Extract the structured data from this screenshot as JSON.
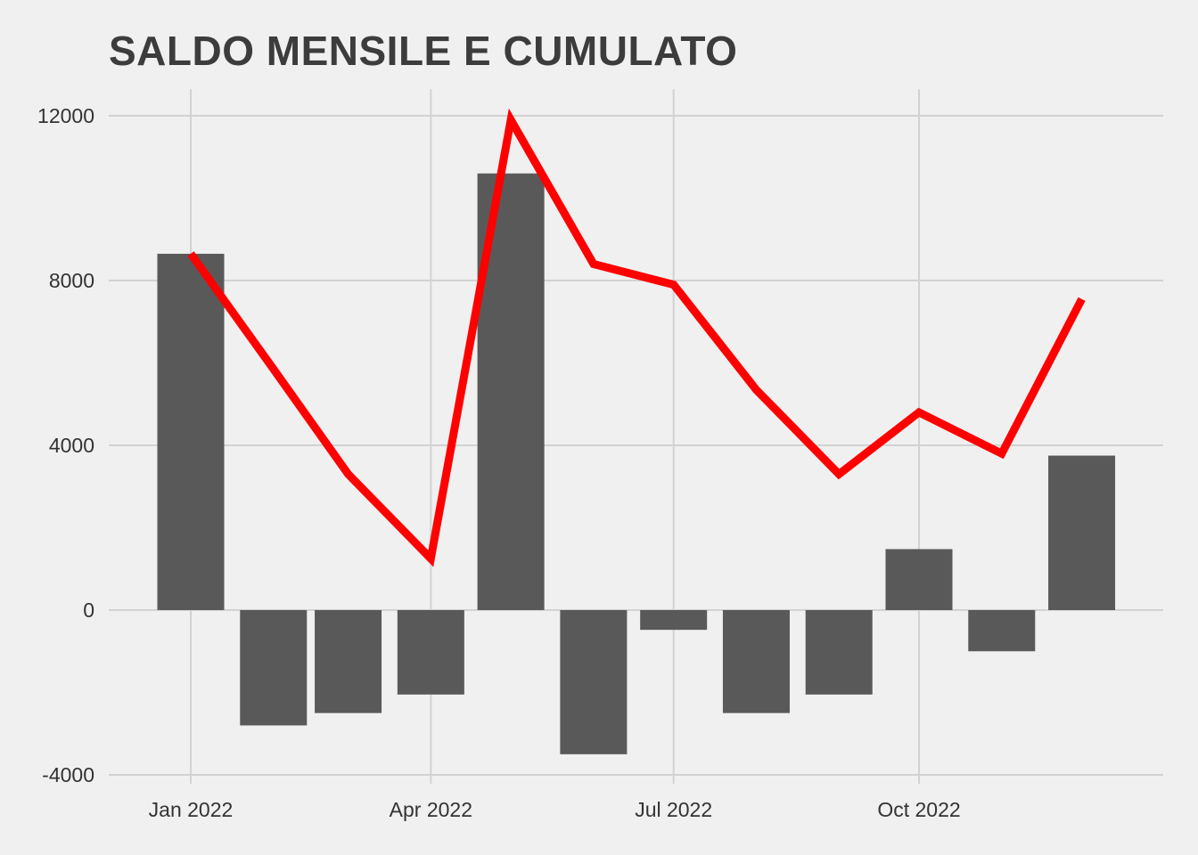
{
  "chart_data": {
    "type": "bar",
    "title": "SALDO MENSILE E CUMULATO",
    "xlabel": "",
    "ylabel": "",
    "x_ticks": [
      "Jan 2022",
      "Apr 2022",
      "Jul 2022",
      "Oct 2022"
    ],
    "y_ticks": [
      -4000,
      0,
      4000,
      8000,
      12000
    ],
    "ylim": [
      -4000,
      12500
    ],
    "grid": true,
    "legend": "none",
    "series": [
      {
        "type": "bar",
        "color": "#595959",
        "x": [
          "2022-01",
          "2022-02",
          "2022-03",
          "2022-04",
          "2022-05",
          "2022-06",
          "2022-07",
          "2022-08",
          "2022-09",
          "2022-10",
          "2022-11",
          "2022-12"
        ],
        "values": [
          8650,
          -2800,
          -2500,
          -2050,
          10600,
          -3500,
          -480,
          -2500,
          -2050,
          1480,
          -1000,
          3750
        ]
      },
      {
        "type": "line",
        "color": "#ff0000",
        "x": [
          "2022-01",
          "2022-02",
          "2022-03",
          "2022-04",
          "2022-05",
          "2022-06",
          "2022-07",
          "2022-08",
          "2022-09",
          "2022-10",
          "2022-11",
          "2022-12"
        ],
        "values": [
          8650,
          5850,
          3300,
          1250,
          11900,
          8400,
          7900,
          5350,
          3300,
          4800,
          3800,
          7550
        ]
      }
    ]
  }
}
